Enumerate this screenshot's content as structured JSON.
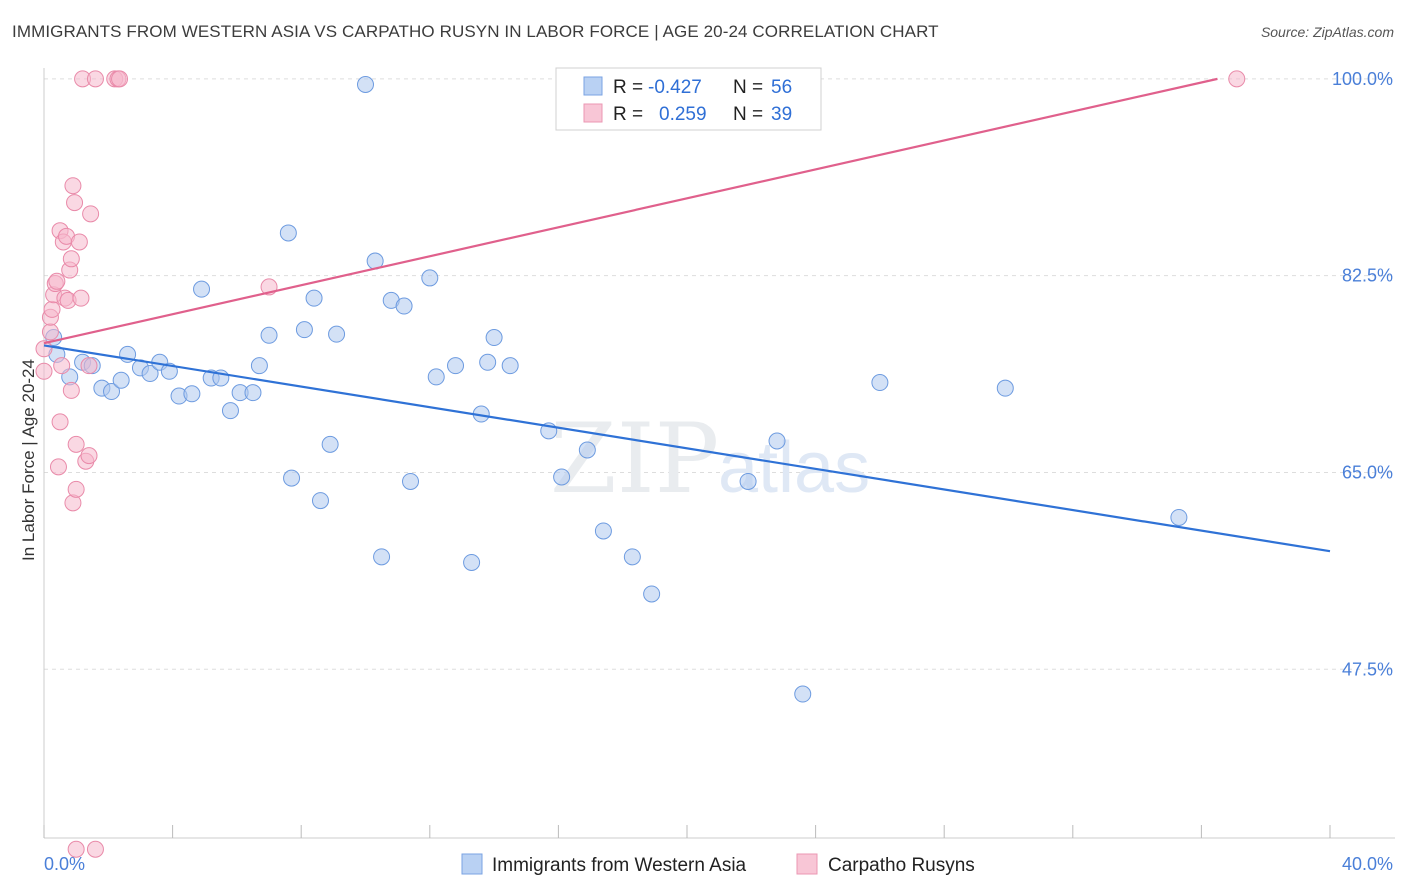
{
  "title": "IMMIGRANTS FROM WESTERN ASIA VS CARPATHO RUSYN IN LABOR FORCE | AGE 20-24 CORRELATION CHART",
  "source": "Source: ZipAtlas.com",
  "watermark": {
    "zip": "ZIP",
    "atlas": "atlas"
  },
  "colors": {
    "blue_fill": "#aec8ef",
    "blue_stroke": "#6d9be0",
    "blue_line": "#2f72d6",
    "pink_fill": "#f5b8cc",
    "pink_stroke": "#e98aa9",
    "pink_line": "#e0608c",
    "grid": "#dddddd",
    "tick_text": "#4a7fd8"
  },
  "legend": {
    "r_label": "R =",
    "n_label": "N =",
    "rows": [
      {
        "r": "-0.427",
        "n": "56",
        "color": "blue"
      },
      {
        "r": "0.259",
        "n": "39",
        "color": "pink"
      }
    ]
  },
  "chart_data": {
    "type": "scatter",
    "ylabel": "In Labor Force | Age 20-24",
    "xlabel": "",
    "xlim": [
      0,
      40
    ],
    "ylim": [
      32.5,
      101.5
    ],
    "x_tick_labels": [
      {
        "value": 0,
        "label": "0.0%"
      },
      {
        "value": 40,
        "label": "40.0%"
      }
    ],
    "y_tick_labels": [
      {
        "value": 100,
        "label": "100.0%"
      },
      {
        "value": 82.5,
        "label": "82.5%"
      },
      {
        "value": 65,
        "label": "65.0%"
      },
      {
        "value": 47.5,
        "label": "47.5%"
      }
    ],
    "series": [
      {
        "name": "Immigrants from Western Asia",
        "color": "blue",
        "trend": {
          "x": [
            0,
            40
          ],
          "y": [
            76.3,
            58.0
          ]
        },
        "points": [
          [
            0.3,
            77.0
          ],
          [
            0.4,
            75.5
          ],
          [
            0.8,
            73.5
          ],
          [
            1.2,
            74.8
          ],
          [
            1.5,
            74.5
          ],
          [
            1.8,
            72.5
          ],
          [
            2.1,
            72.2
          ],
          [
            2.4,
            73.2
          ],
          [
            2.6,
            75.5
          ],
          [
            3.0,
            74.3
          ],
          [
            3.3,
            73.8
          ],
          [
            3.6,
            74.8
          ],
          [
            3.9,
            74.0
          ],
          [
            4.2,
            71.8
          ],
          [
            4.6,
            72.0
          ],
          [
            4.9,
            81.3
          ],
          [
            5.2,
            73.4
          ],
          [
            5.5,
            73.4
          ],
          [
            5.8,
            70.5
          ],
          [
            6.1,
            72.1
          ],
          [
            6.5,
            72.1
          ],
          [
            6.7,
            74.5
          ],
          [
            7.0,
            77.2
          ],
          [
            7.6,
            86.3
          ],
          [
            7.7,
            64.5
          ],
          [
            8.1,
            77.7
          ],
          [
            8.4,
            80.5
          ],
          [
            8.6,
            62.5
          ],
          [
            8.9,
            67.5
          ],
          [
            9.1,
            77.3
          ],
          [
            10.0,
            99.5
          ],
          [
            10.3,
            83.8
          ],
          [
            10.5,
            57.5
          ],
          [
            10.8,
            80.3
          ],
          [
            11.2,
            79.8
          ],
          [
            11.4,
            64.2
          ],
          [
            12.0,
            82.3
          ],
          [
            12.2,
            73.5
          ],
          [
            12.8,
            74.5
          ],
          [
            13.3,
            57.0
          ],
          [
            13.6,
            70.2
          ],
          [
            13.8,
            74.8
          ],
          [
            14.0,
            77.0
          ],
          [
            14.5,
            74.5
          ],
          [
            15.7,
            68.7
          ],
          [
            16.1,
            64.6
          ],
          [
            16.9,
            67.0
          ],
          [
            17.4,
            59.8
          ],
          [
            18.3,
            57.5
          ],
          [
            18.9,
            54.2
          ],
          [
            21.9,
            64.2
          ],
          [
            22.8,
            67.8
          ],
          [
            23.6,
            45.3
          ],
          [
            26.0,
            73.0
          ],
          [
            29.9,
            72.5
          ],
          [
            35.3,
            61.0
          ]
        ]
      },
      {
        "name": "Carpatho Rusyns",
        "color": "pink",
        "trend": {
          "x": [
            0,
            36.5
          ],
          "y": [
            76.5,
            100.0
          ]
        },
        "points": [
          [
            0.0,
            76.0
          ],
          [
            0.0,
            74.0
          ],
          [
            0.2,
            77.5
          ],
          [
            0.2,
            78.8
          ],
          [
            0.25,
            79.5
          ],
          [
            0.3,
            80.8
          ],
          [
            0.35,
            81.8
          ],
          [
            0.4,
            82.0
          ],
          [
            0.45,
            65.5
          ],
          [
            0.5,
            86.5
          ],
          [
            0.5,
            69.5
          ],
          [
            0.55,
            74.5
          ],
          [
            0.6,
            85.5
          ],
          [
            0.65,
            80.5
          ],
          [
            0.7,
            86.0
          ],
          [
            0.75,
            80.3
          ],
          [
            0.8,
            83.0
          ],
          [
            0.85,
            84.0
          ],
          [
            0.85,
            72.3
          ],
          [
            0.9,
            62.3
          ],
          [
            0.9,
            90.5
          ],
          [
            0.95,
            89.0
          ],
          [
            1.0,
            63.5
          ],
          [
            1.0,
            67.5
          ],
          [
            1.1,
            85.5
          ],
          [
            1.15,
            80.5
          ],
          [
            1.2,
            100.0
          ],
          [
            1.0,
            31.5
          ],
          [
            1.3,
            66.0
          ],
          [
            1.4,
            74.5
          ],
          [
            1.4,
            66.5
          ],
          [
            1.45,
            88.0
          ],
          [
            1.6,
            100.0
          ],
          [
            1.6,
            31.5
          ],
          [
            2.2,
            100.0
          ],
          [
            2.3,
            100.0
          ],
          [
            2.35,
            100.0
          ],
          [
            7.0,
            81.5
          ],
          [
            37.1,
            100.0
          ]
        ]
      }
    ]
  }
}
